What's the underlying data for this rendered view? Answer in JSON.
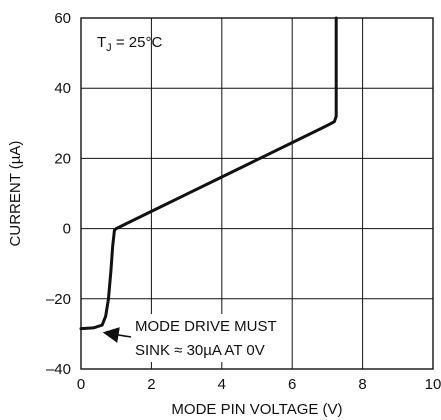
{
  "chart_data": {
    "type": "line",
    "title": "",
    "xlabel": "MODE PIN VOLTAGE (V)",
    "ylabel": "CURRENT (µA)",
    "xlim": [
      0,
      10
    ],
    "ylim": [
      -40,
      60
    ],
    "xticks": [
      0,
      2,
      4,
      6,
      8,
      10
    ],
    "yticks": [
      -40,
      -20,
      0,
      20,
      40,
      60
    ],
    "xtick_labels": [
      "0",
      "2",
      "4",
      "6",
      "8",
      "10"
    ],
    "ytick_labels": [
      "–40",
      "–20",
      "0",
      "20",
      "40",
      "60"
    ],
    "grid": true,
    "series": [
      {
        "x": [
          0.0,
          0.35,
          0.6,
          0.7,
          0.78,
          0.85,
          0.9,
          0.95,
          1.0,
          2.0,
          3.0,
          4.0,
          5.0,
          6.0,
          7.0,
          7.2,
          7.25,
          7.25
        ],
        "y": [
          -28.5,
          -28.3,
          -27.5,
          -25.0,
          -20.0,
          -12.0,
          -5.0,
          -0.5,
          0.0,
          4.9,
          9.8,
          14.7,
          19.6,
          24.5,
          29.4,
          30.5,
          32.0,
          60.0
        ]
      }
    ],
    "annotations": {
      "temperature_prefix": "T",
      "temperature_subscript": "J",
      "temperature_suffix": " = 25°C",
      "note_line1": "MODE DRIVE MUST",
      "note_line2": "SINK ≈ 30µA AT 0V",
      "arrow_target": {
        "x": 0.55,
        "y": -28.5
      }
    },
    "colors": {
      "curve": "#111111",
      "grid": "#111111",
      "frame": "#111111",
      "background": "#ffffff"
    }
  }
}
